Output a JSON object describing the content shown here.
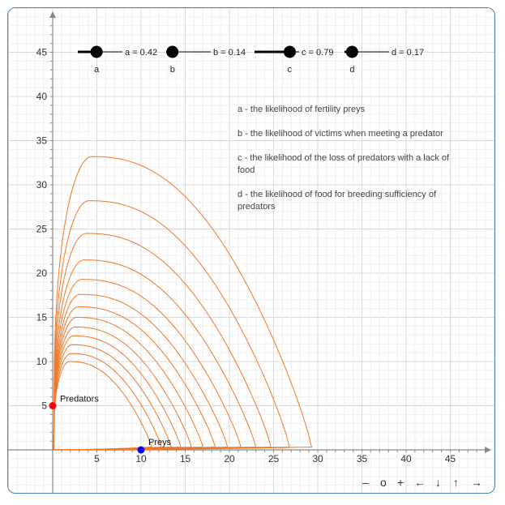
{
  "colors": {
    "grid_major": "#d9d9d9",
    "grid_minor": "#efefef",
    "axis": "#888888",
    "curve": "#f07828",
    "predator_point": "#ff0000",
    "prey_point": "#0000ff",
    "frame": "#4a80b8"
  },
  "sliders": [
    {
      "name": "a",
      "label": "a = 0.42",
      "value": 0.42
    },
    {
      "name": "b",
      "label": "b = 0.14",
      "value": 0.14
    },
    {
      "name": "c",
      "label": "c = 0.79",
      "value": 0.79
    },
    {
      "name": "d",
      "label": "d = 0.17",
      "value": 0.17
    }
  ],
  "descriptions": [
    [
      "a - the likelihood of fertility preys"
    ],
    [
      "b - the likelihood of victims when meeting a predator"
    ],
    [
      "c - the likelihood of the loss of predators with a lack of",
      "food"
    ],
    [
      "d - the likelihood of food for breeding sufficiency of",
      "predators"
    ]
  ],
  "points": {
    "predators": {
      "label": "Predators",
      "x": 0,
      "y": 5
    },
    "preys": {
      "label": "Preys",
      "x": 10,
      "y": 0
    }
  },
  "toolbar": {
    "zoom_out": "–",
    "reset": "o",
    "zoom_in": "+",
    "left": "←",
    "down": "↓",
    "up": "↑",
    "right": "→"
  },
  "chart_data": {
    "type": "line",
    "title": "",
    "xlabel": "",
    "ylabel": "",
    "xlim": [
      -5,
      50
    ],
    "ylim": [
      -5,
      50
    ],
    "x_ticks": [
      5,
      10,
      15,
      20,
      25,
      30,
      35,
      40,
      45
    ],
    "y_ticks": [
      5,
      10,
      15,
      20,
      25,
      30,
      35,
      40,
      45
    ],
    "grid": true,
    "series": [
      {
        "peak_predators": 33.2,
        "max_preys": 29.3
      },
      {
        "peak_predators": 28.2,
        "max_preys": 26.8
      },
      {
        "peak_predators": 24.5,
        "max_preys": 24.7
      },
      {
        "peak_predators": 21.5,
        "max_preys": 23.0
      },
      {
        "peak_predators": 19.3,
        "max_preys": 21.3
      },
      {
        "peak_predators": 17.6,
        "max_preys": 19.8
      },
      {
        "peak_predators": 16.2,
        "max_preys": 18.4
      },
      {
        "peak_predators": 15.0,
        "max_preys": 17.0
      },
      {
        "peak_predators": 13.9,
        "max_preys": 15.7
      },
      {
        "peak_predators": 12.9,
        "max_preys": 14.5
      },
      {
        "peak_predators": 11.9,
        "max_preys": 13.4
      },
      {
        "peak_predators": 10.9,
        "max_preys": 12.3
      },
      {
        "peak_predators": 10.0,
        "max_preys": 11.2
      }
    ]
  }
}
